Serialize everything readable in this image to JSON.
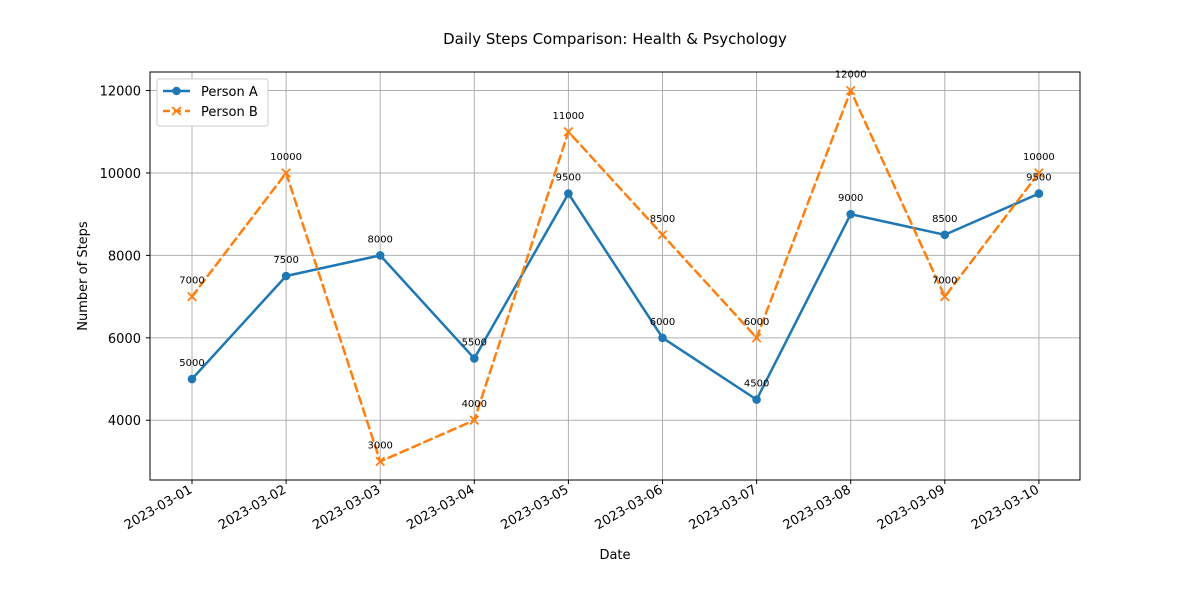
{
  "chart_data": {
    "type": "line",
    "title": "Daily Steps Comparison: Health & Psychology",
    "xlabel": "Date",
    "ylabel": "Number of Steps",
    "x": [
      "2023-03-01",
      "2023-03-02",
      "2023-03-03",
      "2023-03-04",
      "2023-03-05",
      "2023-03-06",
      "2023-03-07",
      "2023-03-08",
      "2023-03-09",
      "2023-03-10"
    ],
    "yticks": [
      4000,
      6000,
      8000,
      10000,
      12000
    ],
    "ylim": [
      2550,
      12450
    ],
    "grid": true,
    "legend_position": "upper-left",
    "series": [
      {
        "name": "Person A",
        "values": [
          5000,
          7500,
          8000,
          5500,
          9500,
          6000,
          4500,
          9000,
          8500,
          9500
        ],
        "color": "#1f77b4",
        "line_style": "solid",
        "marker": "circle"
      },
      {
        "name": "Person B",
        "values": [
          7000,
          10000,
          3000,
          4000,
          11000,
          8500,
          6000,
          12000,
          7000,
          10000
        ],
        "color": "#ff7f0e",
        "line_style": "dashed",
        "marker": "x"
      }
    ]
  }
}
